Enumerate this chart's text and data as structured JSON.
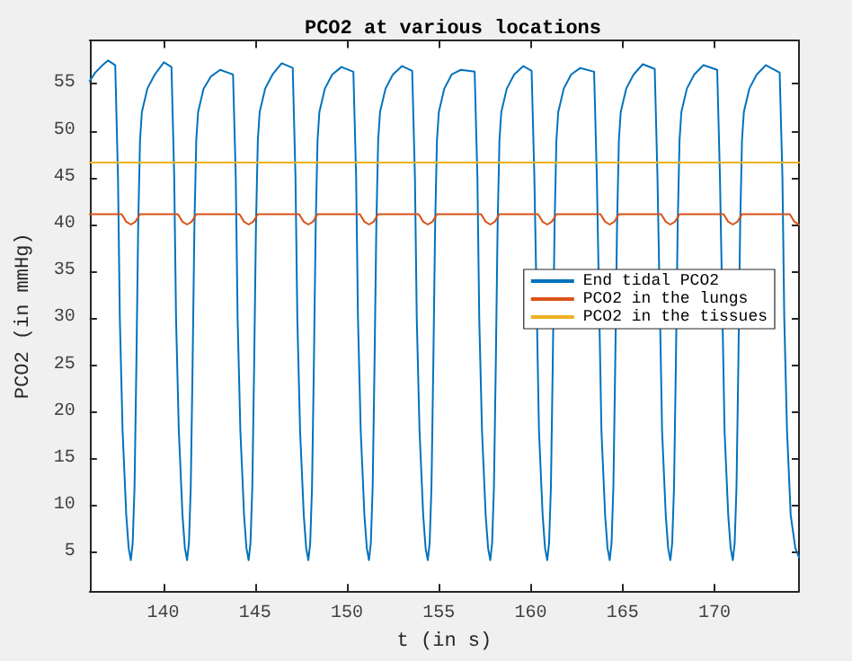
{
  "chart_data": {
    "type": "line",
    "title": "PCO2 at various locations",
    "xlabel": "t (in s)",
    "ylabel": "PCO2 (in mmHg)",
    "xlim": [
      136,
      174.6
    ],
    "ylim": [
      0.9,
      59.6
    ],
    "xticks": [
      140,
      145,
      150,
      155,
      160,
      165,
      170
    ],
    "yticks": [
      5,
      10,
      15,
      20,
      25,
      30,
      35,
      40,
      45,
      50,
      55
    ],
    "grid": false,
    "legend": "right",
    "marker": "none",
    "line_style": "solid",
    "series": [
      {
        "name": "End tidal PCO2",
        "color": "#0072bd",
        "x": [
          136,
          136.3,
          136.7,
          137.0,
          137.39,
          137.54,
          137.64,
          137.79,
          137.99,
          138.12,
          138.24,
          138.34,
          138.44,
          138.54,
          138.64,
          138.74,
          138.84,
          139.14,
          139.54,
          140.04,
          140.45,
          140.6,
          140.7,
          140.85,
          141.05,
          141.18,
          141.3,
          141.4,
          141.5,
          141.6,
          141.7,
          141.8,
          141.9,
          142.2,
          142.6,
          143.1,
          143.8,
          143.95,
          144.05,
          144.2,
          144.4,
          144.53,
          144.65,
          144.75,
          144.85,
          144.95,
          145.05,
          145.15,
          145.25,
          145.55,
          145.95,
          146.45,
          147.05,
          147.2,
          147.3,
          147.45,
          147.65,
          147.78,
          147.9,
          148.0,
          148.1,
          148.2,
          148.3,
          148.4,
          148.5,
          148.8,
          149.2,
          149.7,
          150.35,
          150.5,
          150.6,
          150.75,
          150.95,
          151.08,
          151.2,
          151.3,
          151.4,
          151.5,
          151.6,
          151.7,
          151.8,
          152.1,
          152.5,
          153.0,
          153.55,
          153.7,
          153.8,
          153.95,
          154.15,
          154.28,
          154.4,
          154.5,
          154.6,
          154.7,
          154.8,
          154.9,
          155.0,
          155.3,
          155.7,
          156.2,
          156.95,
          157.1,
          157.2,
          157.35,
          157.55,
          157.68,
          157.8,
          157.9,
          158.0,
          158.1,
          158.2,
          158.3,
          158.4,
          158.7,
          159.1,
          159.6,
          160.05,
          160.2,
          160.45,
          160.65,
          160.78,
          160.9,
          161.0,
          161.1,
          161.2,
          161.3,
          161.4,
          161.5,
          161.8,
          162.2,
          162.7,
          163.45,
          163.6,
          163.85,
          164.05,
          164.18,
          164.3,
          164.4,
          164.5,
          164.6,
          164.7,
          164.8,
          164.9,
          165.2,
          165.6,
          166.1,
          166.75,
          166.9,
          167.15,
          167.35,
          167.48,
          167.6,
          167.7,
          167.8,
          167.9,
          168.0,
          168.1,
          168.2,
          168.5,
          168.9,
          169.4,
          170.15,
          170.3,
          170.55,
          170.75,
          170.88,
          171.0,
          171.1,
          171.2,
          171.3,
          171.4,
          171.5,
          171.6,
          171.9,
          172.3,
          172.8,
          173.55,
          173.7,
          173.8,
          173.95,
          174.15,
          174.4,
          174.6
        ],
        "values": [
          55.3,
          56.2,
          57.0,
          57.5,
          57.0,
          45,
          30,
          18,
          9,
          5.5,
          4.2,
          6,
          12,
          25,
          40,
          49,
          52,
          54.5,
          56,
          57.3,
          56.8,
          45,
          30,
          18,
          9,
          5.5,
          4.2,
          6,
          12,
          25,
          40,
          49,
          52,
          54.5,
          55.8,
          56.5,
          56.0,
          45,
          30,
          18,
          9,
          5.5,
          4.2,
          6,
          12,
          25,
          40,
          49,
          52,
          54.5,
          56,
          57.2,
          56.7,
          45,
          30,
          18,
          9,
          5.5,
          4.2,
          6,
          12,
          25,
          40,
          49,
          52,
          54.5,
          56,
          56.8,
          56.3,
          45,
          30,
          18,
          9,
          5.5,
          4.2,
          6,
          12,
          25,
          40,
          49,
          52,
          54.5,
          56,
          56.9,
          56.4,
          45,
          30,
          18,
          9,
          5.5,
          4.2,
          6,
          12,
          25,
          40,
          49,
          52,
          54.5,
          56,
          56.5,
          56.3,
          45,
          30,
          18,
          9,
          5.5,
          4.2,
          6,
          12,
          25,
          40,
          49,
          52,
          54.5,
          56,
          56.9,
          56.4,
          45,
          18,
          9,
          5.5,
          4.2,
          6,
          12,
          25,
          40,
          49,
          52,
          54.5,
          56,
          56.7,
          56.3,
          45,
          18,
          9,
          5.5,
          4.2,
          6,
          12,
          25,
          40,
          49,
          52,
          54.5,
          56,
          57.1,
          56.6,
          45,
          18,
          9,
          5.5,
          4.2,
          6,
          12,
          25,
          40,
          49,
          52,
          54.5,
          56,
          57.0,
          56.5,
          45,
          18,
          9,
          5.5,
          4.2,
          6,
          12,
          25,
          40,
          49,
          52,
          54.5,
          56,
          57.0,
          56.2,
          45,
          30,
          18,
          9,
          5.5,
          4.5
        ]
      },
      {
        "name": "PCO2 in the lungs",
        "color": "#d95319",
        "x": [
          136,
          137.74,
          137.99,
          138.24,
          138.49,
          138.74,
          140.8,
          141.05,
          141.3,
          141.55,
          141.8,
          144.15,
          144.4,
          144.65,
          144.9,
          145.15,
          147.4,
          147.65,
          147.9,
          148.15,
          148.4,
          150.7,
          150.95,
          151.2,
          151.45,
          151.7,
          153.9,
          154.15,
          154.4,
          154.65,
          154.9,
          157.3,
          157.55,
          157.8,
          158.05,
          158.3,
          160.4,
          160.65,
          160.9,
          161.15,
          161.4,
          163.8,
          164.05,
          164.3,
          164.55,
          164.8,
          167.1,
          167.35,
          167.6,
          167.85,
          168.1,
          170.5,
          170.75,
          171.0,
          171.25,
          171.5,
          174.1,
          174.35,
          174.6
        ],
        "values": [
          41.1,
          41.1,
          40.3,
          40.0,
          40.3,
          41.1,
          41.1,
          40.3,
          40.0,
          40.3,
          41.1,
          41.1,
          40.3,
          40.0,
          40.3,
          41.1,
          41.1,
          40.3,
          40.0,
          40.3,
          41.1,
          41.1,
          40.3,
          40.0,
          40.3,
          41.1,
          41.1,
          40.3,
          40.0,
          40.3,
          41.1,
          41.1,
          40.3,
          40.0,
          40.3,
          41.1,
          41.1,
          40.3,
          40.0,
          40.3,
          41.1,
          41.1,
          40.3,
          40.0,
          40.3,
          41.1,
          41.1,
          40.3,
          40.0,
          40.3,
          41.1,
          41.1,
          40.3,
          40.0,
          40.3,
          41.1,
          41.1,
          40.3,
          40.0
        ]
      },
      {
        "name": "PCO2 in the tissues",
        "color": "#edb120",
        "x": [
          136,
          174.6
        ],
        "values": [
          46.6,
          46.6
        ]
      }
    ]
  }
}
